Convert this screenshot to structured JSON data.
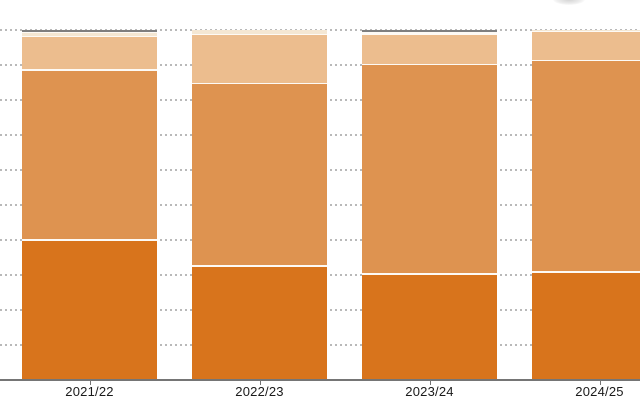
{
  "chart_data": {
    "type": "bar",
    "stacking": "percent",
    "title": "",
    "xlabel": "",
    "ylabel": "",
    "ylim": [
      0,
      100
    ],
    "grid": "10 horizontal dotted gridline divisions, y-axis tick labels not visible (cropped)",
    "legend_position": "not visible (cropped)",
    "categories": [
      "2021/22",
      "2022/23",
      "2023/24",
      "2024/25"
    ],
    "series": [
      {
        "name": "dark-orange-bottom-segment",
        "color": "#d8741c",
        "values": [
          40.0,
          32.6,
          30.3,
          30.9
        ]
      },
      {
        "name": "medium-orange-segment",
        "color": "#de9350",
        "values": [
          48.6,
          52.2,
          59.9,
          60.3
        ]
      },
      {
        "name": "light-peach-segment",
        "color": "#ecbd8e",
        "values": [
          9.6,
          13.9,
          8.7,
          8.3
        ]
      },
      {
        "name": "cream-segment",
        "color": "#f4e7d3",
        "values": [
          1.0,
          1.3,
          0.3,
          0.5
        ]
      },
      {
        "name": "gray-top-segment",
        "color": "#7f7f7f",
        "values": [
          0.8,
          0.0,
          0.8,
          0.0
        ]
      }
    ]
  },
  "x_axis": {
    "tick_labels": [
      "2021/22",
      "2022/23",
      "2023/24",
      "2024/25"
    ]
  },
  "colors": {
    "background": "#ffffff",
    "axis_line": "#757575",
    "gridline_dots": "#b9b9b9",
    "tick_label_text": "#1a1a1a",
    "segment_divider": "#fdfaf5"
  }
}
